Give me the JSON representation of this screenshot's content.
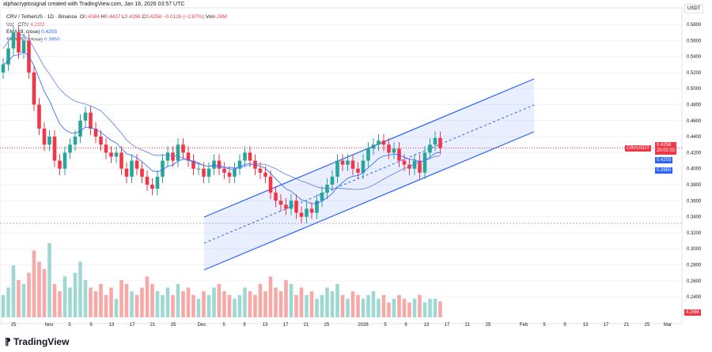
{
  "header": "alphacryptosignal created with TradingView.com, Jan 16, 2026 03:57 UTC",
  "legend": {
    "symbol": "CRV / TetherUS · 1D · Binance",
    "o_label": "O",
    "o": "0.4384",
    "h_label": "H",
    "h": "0.4437",
    "l_label": "L",
    "l": "0.4256",
    "c_label": "C",
    "c": "0.4258",
    "change": "−0.0126 (−2.87%)",
    "vol_label": "Vol",
    "vol": "4.26M",
    "vol_line": "Vol · CRV",
    "vol_value": "4.26M",
    "ema_line": "EMA (9, close)",
    "ema_value": "0.4203",
    "sma_line": "SMA (50, close)",
    "sma_value": "0.3950"
  },
  "axis": {
    "unit": "USDT",
    "prices": [
      "0.5800",
      "0.5600",
      "0.5400",
      "0.5200",
      "0.5000",
      "0.4800",
      "0.4600",
      "0.4400",
      "0.4200",
      "0.4000",
      "0.3800",
      "0.3600",
      "0.3400",
      "0.3200",
      "0.3000",
      "0.2800",
      "0.2600",
      "0.2400"
    ],
    "dates": [
      "25",
      "Nov",
      "5",
      "9",
      "13",
      "17",
      "21",
      "25",
      "Dec",
      "5",
      "9",
      "13",
      "17",
      "21",
      "25",
      "2026",
      "5",
      "9",
      "13",
      "17",
      "21",
      "25",
      "Feb",
      "5",
      "9",
      "13",
      "17",
      "21",
      "25",
      "Mar"
    ]
  },
  "tags": {
    "symbol": "CRVUSDT",
    "price": "0.4258",
    "countdown": "20:02:02",
    "ema": "0.4203",
    "sma": "0.3950",
    "volume": "4.26M"
  },
  "colors": {
    "up": "#26a69a",
    "down": "#f23645",
    "upVol": "#9fd8d2",
    "downVol": "#f7a9a7",
    "ma": "#2962ff",
    "channel": "#2962ff"
  },
  "chart_data": {
    "type": "candlestick",
    "start": "Oct 23",
    "closes": [
      0.53,
      0.55,
      0.57,
      0.545,
      0.56,
      0.52,
      0.48,
      0.45,
      0.43,
      0.44,
      0.41,
      0.4,
      0.42,
      0.43,
      0.44,
      0.46,
      0.47,
      0.45,
      0.44,
      0.43,
      0.42,
      0.415,
      0.42,
      0.4,
      0.39,
      0.41,
      0.4,
      0.39,
      0.38,
      0.375,
      0.39,
      0.41,
      0.42,
      0.41,
      0.43,
      0.42,
      0.41,
      0.4,
      0.4,
      0.39,
      0.4,
      0.41,
      0.4,
      0.395,
      0.39,
      0.4,
      0.41,
      0.42,
      0.41,
      0.4,
      0.395,
      0.39,
      0.37,
      0.36,
      0.355,
      0.35,
      0.36,
      0.345,
      0.34,
      0.35,
      0.345,
      0.36,
      0.37,
      0.38,
      0.39,
      0.41,
      0.405,
      0.41,
      0.4,
      0.395,
      0.41,
      0.425,
      0.43,
      0.435,
      0.43,
      0.42,
      0.425,
      0.41,
      0.405,
      0.4,
      0.41,
      0.395,
      0.42,
      0.43,
      0.4384,
      0.4258
    ],
    "volumes_m": [
      6,
      8,
      14,
      10,
      9,
      12,
      18,
      15,
      13,
      20,
      9,
      7,
      11,
      8,
      12,
      15,
      10,
      8,
      7,
      9,
      6,
      8,
      5,
      10,
      9,
      7,
      6,
      8,
      11,
      9,
      7,
      6,
      8,
      6,
      9,
      7,
      8,
      6,
      5,
      7,
      6,
      8,
      9,
      7,
      6,
      5,
      6,
      8,
      7,
      6,
      9,
      7,
      11,
      8,
      7,
      10,
      9,
      6,
      8,
      6,
      7,
      5,
      6,
      8,
      7,
      9,
      6,
      5,
      7,
      6,
      5,
      6,
      7,
      5,
      6,
      4,
      5,
      6,
      5,
      4,
      5,
      6,
      4,
      5,
      5,
      4.26
    ]
  }
}
